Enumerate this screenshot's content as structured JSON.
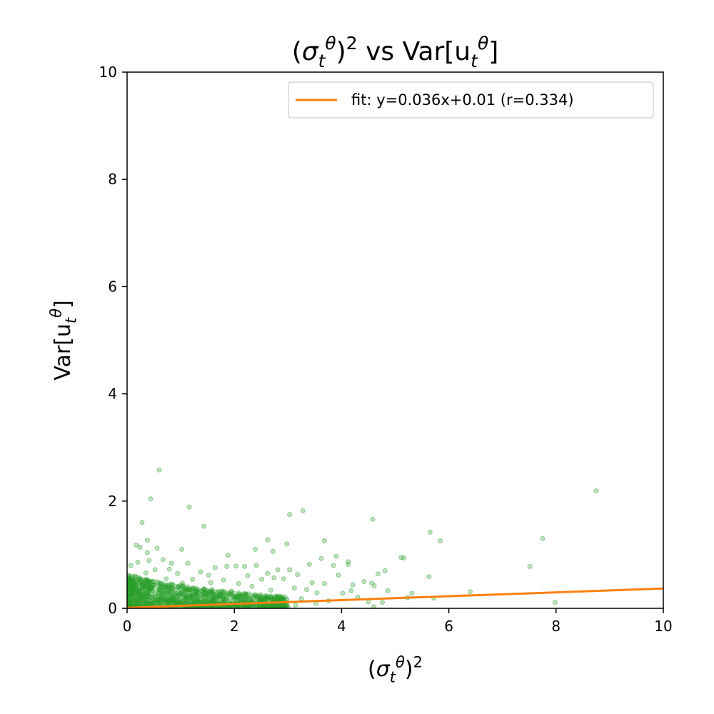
{
  "chart_data": {
    "type": "scatter",
    "title": "(σ_t^θ)^2 vs Var[u_t^θ]",
    "xlabel": "(σ_t^θ)^2",
    "ylabel": "Var[u_t^θ]",
    "xlim": [
      0,
      10
    ],
    "ylim": [
      0,
      10
    ],
    "x_ticks": [
      "0",
      "2",
      "4",
      "6",
      "8",
      "10"
    ],
    "y_ticks": [
      "0",
      "2",
      "4",
      "6",
      "8",
      "10"
    ],
    "grid": false,
    "legend_position": "top-right",
    "fit": {
      "label": "fit: y=0.036x+0.01 (r=0.334)",
      "slope": 0.036,
      "intercept": 0.01,
      "r": 0.334,
      "color": "#ff7f0e"
    },
    "series": [
      {
        "color": "#2ca02c",
        "alpha": 0.3,
        "points": [
          [
            0.6,
            2.58
          ],
          [
            0.44,
            2.04
          ],
          [
            1.16,
            1.89
          ],
          [
            8.75,
            2.19
          ],
          [
            0.28,
            1.6
          ],
          [
            1.43,
            1.53
          ],
          [
            3.28,
            1.82
          ],
          [
            3.03,
            1.75
          ],
          [
            4.58,
            1.66
          ],
          [
            5.65,
            1.42
          ],
          [
            5.84,
            1.26
          ],
          [
            7.75,
            1.3
          ],
          [
            7.51,
            0.78
          ],
          [
            0.38,
            1.27
          ],
          [
            0.17,
            1.18
          ],
          [
            0.24,
            1.14
          ],
          [
            0.38,
            1.04
          ],
          [
            0.56,
            1.12
          ],
          [
            1.02,
            1.1
          ],
          [
            2.62,
            1.28
          ],
          [
            2.98,
            1.2
          ],
          [
            3.68,
            1.26
          ],
          [
            2.39,
            1.1
          ],
          [
            2.72,
            1.06
          ],
          [
            1.88,
            0.99
          ],
          [
            3.9,
            0.97
          ],
          [
            4.13,
            0.87
          ],
          [
            3.62,
            0.93
          ],
          [
            3.85,
            0.8
          ],
          [
            5.11,
            0.95
          ],
          [
            5.16,
            0.94
          ],
          [
            4.81,
            0.7
          ],
          [
            4.68,
            0.64
          ],
          [
            5.63,
            0.59
          ],
          [
            4.42,
            0.5
          ],
          [
            4.56,
            0.47
          ],
          [
            4.61,
            0.42
          ],
          [
            4.21,
            0.44
          ],
          [
            4.18,
            0.33
          ],
          [
            4.86,
            0.33
          ],
          [
            5.23,
            0.2
          ],
          [
            5.31,
            0.28
          ],
          [
            5.72,
            0.19
          ],
          [
            6.4,
            0.31
          ],
          [
            7.98,
            0.11
          ],
          [
            4.12,
            0.82
          ],
          [
            3.94,
            0.62
          ],
          [
            3.18,
            0.63
          ],
          [
            3.45,
            0.48
          ],
          [
            3.4,
            0.82
          ],
          [
            3.03,
            0.72
          ],
          [
            2.81,
            0.72
          ],
          [
            2.62,
            0.65
          ],
          [
            2.74,
            0.57
          ],
          [
            2.92,
            0.55
          ],
          [
            3.12,
            0.38
          ],
          [
            3.35,
            0.35
          ],
          [
            3.54,
            0.29
          ],
          [
            4.02,
            0.28
          ],
          [
            4.5,
            0.12
          ],
          [
            4.76,
            0.11
          ],
          [
            4.6,
            0.03
          ],
          [
            3.76,
            0.14
          ],
          [
            4.3,
            0.21
          ],
          [
            3.68,
            0.46
          ],
          [
            2.41,
            0.8
          ],
          [
            2.19,
            0.78
          ],
          [
            2.03,
            0.79
          ],
          [
            1.86,
            0.78
          ],
          [
            1.64,
            0.76
          ],
          [
            1.13,
            0.84
          ],
          [
            0.83,
            0.84
          ],
          [
            0.67,
            0.91
          ],
          [
            0.79,
            0.73
          ],
          [
            0.41,
            0.89
          ],
          [
            0.2,
            0.86
          ],
          [
            0.07,
            0.8
          ],
          [
            0.52,
            0.72
          ],
          [
            0.35,
            0.66
          ],
          [
            1.37,
            0.68
          ],
          [
            1.52,
            0.62
          ],
          [
            0.94,
            0.65
          ],
          [
            2.25,
            0.61
          ],
          [
            2.51,
            0.54
          ],
          [
            2.33,
            0.41
          ],
          [
            2.08,
            0.46
          ],
          [
            1.8,
            0.53
          ],
          [
            1.56,
            0.48
          ],
          [
            1.95,
            0.32
          ],
          [
            2.68,
            0.34
          ],
          [
            2.9,
            0.21
          ],
          [
            3.25,
            0.18
          ],
          [
            3.52,
            0.09
          ],
          [
            3.14,
            0.06
          ],
          [
            2.85,
            0.05
          ],
          [
            1.22,
            0.54
          ],
          [
            0.73,
            0.55
          ],
          [
            0.15,
            0.6
          ],
          [
            0.48,
            0.5
          ],
          [
            1.03,
            0.47
          ]
        ]
      }
    ]
  }
}
